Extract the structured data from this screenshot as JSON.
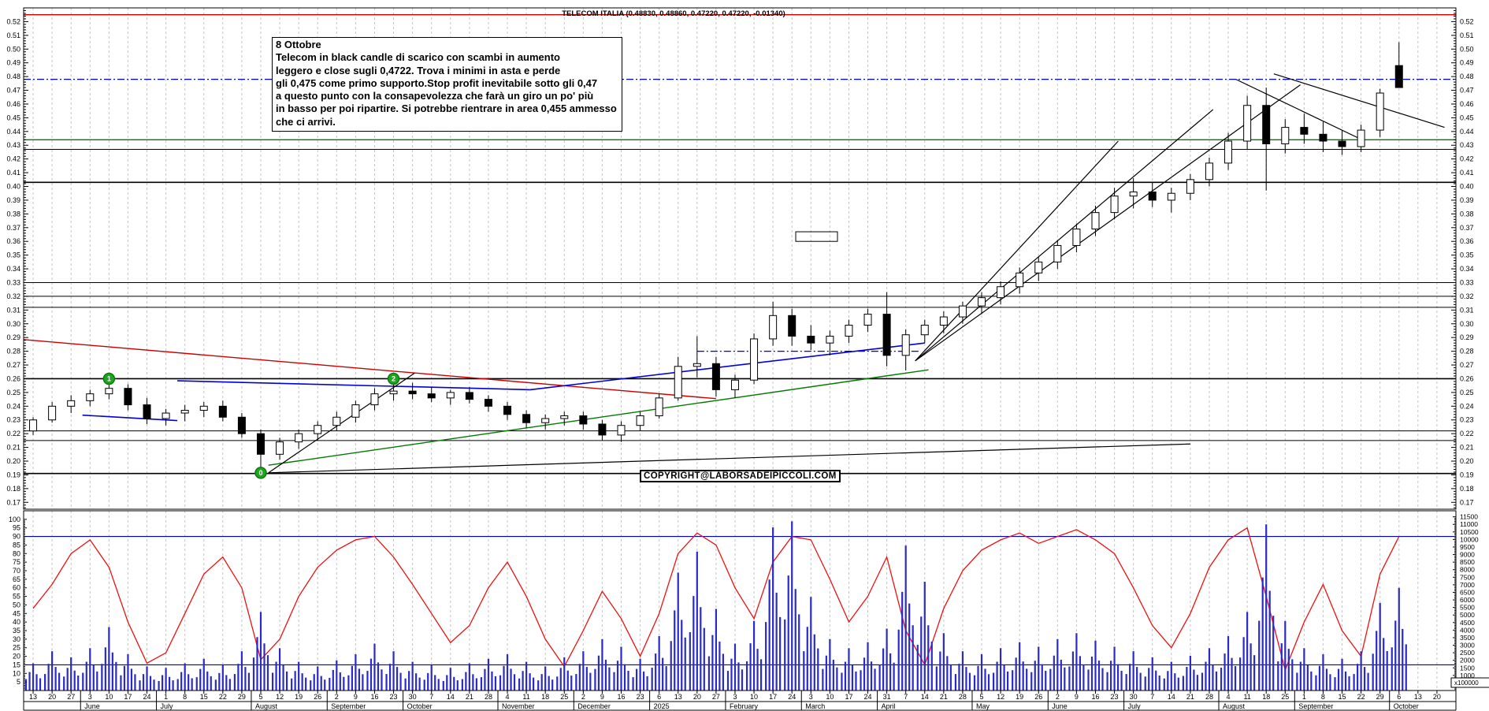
{
  "chart_title": "TELECOM ITALIA (0.48830, 0.48860, 0.47220, 0.47220,  -0.01340)",
  "copyright_label": "COPYRIGHT@LABORSADEIPICCOLI.COM",
  "volume_unit": "x100000",
  "annotation_box": {
    "line1": "8 Ottobre",
    "line2": "Telecom in black candle di scarico con scambi in aumento",
    "line3": "leggero e close sugli 0,4722. Trova i minimi in asta e perde",
    "line4": "gli 0,475 come primo supporto.Stop profit inevitabile sotto gli 0,47",
    "line5": "a questo punto con la consapevolezza che farà un giro un po' più",
    "line6": "in basso per poi ripartire. Si potrebbe rientrare in area 0,455 ammesso",
    "line7": "che ci arrivi."
  },
  "colors": {
    "up_candle": "#ffffff",
    "down_candle": "#000000",
    "volume_bar": "#2a2ac8",
    "oscillator_line": "#ee1111",
    "grid": "#c4c4c4",
    "frame": "#000000",
    "resistance_red": "#cc0000",
    "dashdot_blue": "#0000dd",
    "support_green": "#007a00",
    "osc_threshold_blue": "#0000cc",
    "marker_circle_fill": "#1fa51f",
    "marker_circle_stroke": "#0c7a0c"
  },
  "chart_data": {
    "type": "candlestick",
    "title": "TELECOM ITALIA (0.48830, 0.48860, 0.47220, 0.47220,  -0.01340)",
    "last_quote": {
      "open": 0.4883,
      "high": 0.4886,
      "low": 0.4722,
      "close": 0.4722,
      "change": -0.0134
    },
    "price_axis": {
      "min": 0.165,
      "max": 0.53,
      "tick_step": 0.01,
      "first_label": 0.52,
      "last_label": 0.17
    },
    "oscillator_axis": {
      "min": 0,
      "max": 105,
      "tick_step": 5,
      "labels_from": 5,
      "labels_to": 100
    },
    "volume_axis": {
      "min": 0,
      "max": 11900,
      "tick_step": 500,
      "labels_from": 500,
      "labels_to": 11500,
      "unit": "x100000"
    },
    "week_labels": [
      "13",
      "20",
      "27",
      "3",
      "10",
      "17",
      "24",
      "1",
      "8",
      "15",
      "22",
      "29",
      "5",
      "12",
      "19",
      "26",
      "2",
      "9",
      "16",
      "23",
      "30",
      "7",
      "14",
      "21",
      "28",
      "4",
      "11",
      "18",
      "25",
      "2",
      "9",
      "16",
      "23",
      "6",
      "13",
      "20",
      "27",
      "3",
      "10",
      "17",
      "24",
      "3",
      "10",
      "17",
      "24",
      "31",
      "7",
      "14",
      "21",
      "28",
      "5",
      "12",
      "19",
      "26",
      "2",
      "9",
      "16",
      "23",
      "30",
      "7",
      "14",
      "21",
      "28",
      "4",
      "11",
      "18",
      "25",
      "1",
      "8",
      "15",
      "22",
      "29",
      "6",
      "13",
      "20"
    ],
    "month_sections": [
      {
        "label": "",
        "start": 0
      },
      {
        "label": "June",
        "start": 3
      },
      {
        "label": "July",
        "start": 7
      },
      {
        "label": "August",
        "start": 12
      },
      {
        "label": "September",
        "start": 16
      },
      {
        "label": "October",
        "start": 20
      },
      {
        "label": "November",
        "start": 25
      },
      {
        "label": "December",
        "start": 29
      },
      {
        "label": "2025",
        "start": 33
      },
      {
        "label": "February",
        "start": 37
      },
      {
        "label": "March",
        "start": 41
      },
      {
        "label": "April",
        "start": 45
      },
      {
        "label": "May",
        "start": 50
      },
      {
        "label": "June",
        "start": 54
      },
      {
        "label": "July",
        "start": 58
      },
      {
        "label": "August",
        "start": 63
      },
      {
        "label": "September",
        "start": 67
      },
      {
        "label": "October",
        "start": 72
      }
    ],
    "candles_weekly_ohlc": [
      [
        0.222,
        0.232,
        0.219,
        0.23
      ],
      [
        0.23,
        0.243,
        0.228,
        0.24
      ],
      [
        0.24,
        0.248,
        0.235,
        0.244
      ],
      [
        0.244,
        0.252,
        0.24,
        0.249
      ],
      [
        0.249,
        0.26,
        0.245,
        0.253
      ],
      [
        0.253,
        0.256,
        0.237,
        0.241
      ],
      [
        0.241,
        0.246,
        0.227,
        0.231
      ],
      [
        0.231,
        0.238,
        0.226,
        0.235
      ],
      [
        0.235,
        0.241,
        0.229,
        0.237
      ],
      [
        0.237,
        0.243,
        0.232,
        0.24
      ],
      [
        0.24,
        0.244,
        0.229,
        0.232
      ],
      [
        0.232,
        0.235,
        0.217,
        0.22
      ],
      [
        0.22,
        0.223,
        0.192,
        0.205
      ],
      [
        0.205,
        0.217,
        0.201,
        0.214
      ],
      [
        0.214,
        0.223,
        0.209,
        0.22
      ],
      [
        0.22,
        0.229,
        0.215,
        0.226
      ],
      [
        0.226,
        0.236,
        0.222,
        0.232
      ],
      [
        0.232,
        0.244,
        0.228,
        0.241
      ],
      [
        0.241,
        0.253,
        0.237,
        0.249
      ],
      [
        0.249,
        0.26,
        0.244,
        0.251
      ],
      [
        0.251,
        0.257,
        0.245,
        0.249
      ],
      [
        0.249,
        0.254,
        0.243,
        0.246
      ],
      [
        0.246,
        0.252,
        0.241,
        0.25
      ],
      [
        0.25,
        0.254,
        0.242,
        0.245
      ],
      [
        0.245,
        0.248,
        0.236,
        0.24
      ],
      [
        0.24,
        0.243,
        0.23,
        0.234
      ],
      [
        0.234,
        0.237,
        0.224,
        0.228
      ],
      [
        0.228,
        0.234,
        0.223,
        0.231
      ],
      [
        0.231,
        0.236,
        0.226,
        0.233
      ],
      [
        0.233,
        0.236,
        0.223,
        0.227
      ],
      [
        0.227,
        0.23,
        0.215,
        0.219
      ],
      [
        0.219,
        0.229,
        0.214,
        0.226
      ],
      [
        0.226,
        0.236,
        0.222,
        0.233
      ],
      [
        0.233,
        0.249,
        0.231,
        0.246
      ],
      [
        0.246,
        0.276,
        0.244,
        0.269
      ],
      [
        0.269,
        0.291,
        0.261,
        0.271
      ],
      [
        0.271,
        0.276,
        0.247,
        0.252
      ],
      [
        0.252,
        0.263,
        0.246,
        0.259
      ],
      [
        0.259,
        0.293,
        0.256,
        0.289
      ],
      [
        0.289,
        0.316,
        0.284,
        0.306
      ],
      [
        0.306,
        0.311,
        0.284,
        0.291
      ],
      [
        0.291,
        0.299,
        0.281,
        0.286
      ],
      [
        0.286,
        0.295,
        0.277,
        0.291
      ],
      [
        0.291,
        0.303,
        0.286,
        0.299
      ],
      [
        0.299,
        0.311,
        0.294,
        0.307
      ],
      [
        0.307,
        0.323,
        0.269,
        0.277
      ],
      [
        0.277,
        0.296,
        0.266,
        0.292
      ],
      [
        0.292,
        0.303,
        0.286,
        0.299
      ],
      [
        0.299,
        0.309,
        0.293,
        0.305
      ],
      [
        0.305,
        0.316,
        0.3,
        0.313
      ],
      [
        0.313,
        0.323,
        0.307,
        0.319
      ],
      [
        0.319,
        0.331,
        0.314,
        0.327
      ],
      [
        0.327,
        0.341,
        0.322,
        0.337
      ],
      [
        0.337,
        0.349,
        0.331,
        0.345
      ],
      [
        0.345,
        0.361,
        0.34,
        0.357
      ],
      [
        0.357,
        0.373,
        0.352,
        0.369
      ],
      [
        0.369,
        0.386,
        0.364,
        0.381
      ],
      [
        0.381,
        0.399,
        0.376,
        0.393
      ],
      [
        0.393,
        0.406,
        0.384,
        0.396
      ],
      [
        0.396,
        0.403,
        0.385,
        0.39
      ],
      [
        0.39,
        0.399,
        0.381,
        0.395
      ],
      [
        0.395,
        0.409,
        0.39,
        0.405
      ],
      [
        0.405,
        0.421,
        0.4,
        0.417
      ],
      [
        0.417,
        0.439,
        0.412,
        0.433
      ],
      [
        0.433,
        0.466,
        0.427,
        0.459
      ],
      [
        0.459,
        0.472,
        0.397,
        0.431
      ],
      [
        0.431,
        0.449,
        0.424,
        0.443
      ],
      [
        0.443,
        0.453,
        0.431,
        0.438
      ],
      [
        0.438,
        0.447,
        0.425,
        0.433
      ],
      [
        0.433,
        0.441,
        0.423,
        0.429
      ],
      [
        0.429,
        0.445,
        0.425,
        0.441
      ],
      [
        0.441,
        0.471,
        0.436,
        0.468
      ],
      [
        0.488,
        0.505,
        0.472,
        0.472
      ]
    ],
    "oscillator_weekly": [
      48,
      62,
      80,
      88,
      72,
      40,
      16,
      22,
      45,
      68,
      78,
      60,
      18,
      30,
      55,
      72,
      82,
      88,
      90,
      78,
      62,
      45,
      28,
      38,
      60,
      75,
      55,
      30,
      14,
      35,
      58,
      42,
      20,
      45,
      80,
      92,
      85,
      60,
      42,
      75,
      90,
      88,
      65,
      40,
      55,
      78,
      35,
      15,
      48,
      70,
      82,
      88,
      92,
      86,
      90,
      94,
      88,
      80,
      60,
      38,
      25,
      45,
      72,
      88,
      95,
      55,
      12,
      40,
      62,
      35,
      20,
      68,
      90
    ],
    "volume_weekly": [
      1800,
      2600,
      2200,
      2800,
      4200,
      2400,
      1600,
      1500,
      1800,
      2100,
      1700,
      2600,
      5200,
      2800,
      1900,
      1600,
      2000,
      2400,
      3100,
      2600,
      1900,
      1700,
      1500,
      1800,
      2100,
      2400,
      1900,
      1600,
      2200,
      2600,
      3400,
      2900,
      2100,
      3600,
      7800,
      9200,
      5400,
      3100,
      4600,
      10800,
      11200,
      6200,
      3400,
      2800,
      3200,
      4100,
      9600,
      7200,
      3800,
      2600,
      2400,
      2800,
      3200,
      2900,
      3400,
      3800,
      3300,
      2900,
      2600,
      2200,
      1900,
      2300,
      2800,
      3600,
      5200,
      11000,
      4600,
      2800,
      2400,
      2100,
      2600,
      5800,
      6800
    ],
    "hlines": [
      {
        "v": 0.525,
        "color": "#cc0000",
        "w": 1.3
      },
      {
        "v": 0.478,
        "color": "#0000dd",
        "style": "dashdot",
        "w": 1.3
      },
      {
        "v": 0.434,
        "color": "#007a00",
        "w": 1.4
      },
      {
        "v": 0.427,
        "color": "#000000",
        "w": 1
      },
      {
        "v": 0.403,
        "color": "#000000",
        "w": 1.6
      },
      {
        "v": 0.33,
        "color": "#000000",
        "w": 1
      },
      {
        "v": 0.32,
        "color": "#000000",
        "w": 1
      },
      {
        "v": 0.312,
        "color": "#000000",
        "w": 1
      },
      {
        "v": 0.26,
        "color": "#000000",
        "w": 1.6
      },
      {
        "v": 0.222,
        "color": "#000000",
        "w": 1
      },
      {
        "v": 0.215,
        "color": "#000000",
        "w": 1
      },
      {
        "v": 0.191,
        "color": "#000000",
        "w": 1.6
      }
    ],
    "osc_hlines": [
      90,
      15
    ],
    "trendlines": [
      {
        "w1": -0.5,
        "p1": 0.2885,
        "w2": 36.0,
        "p2": 0.2455,
        "color": "#cc0000",
        "w": 1.4
      },
      {
        "w1": 2.6,
        "p1": 0.2335,
        "w2": 7.6,
        "p2": 0.2295,
        "color": "#0000dd",
        "w": 1.6
      },
      {
        "w1": 7.6,
        "p1": 0.2585,
        "w2": 26.2,
        "p2": 0.252,
        "color": "#0000dd",
        "w": 1.6
      },
      {
        "w1": 26.2,
        "p1": 0.252,
        "w2": 47.0,
        "p2": 0.286,
        "color": "#0000dd",
        "w": 1.6
      },
      {
        "w1": 35.0,
        "p1": 0.28,
        "w2": 46.8,
        "p2": 0.28,
        "color": "#0000dd",
        "w": 1.3,
        "style": "dashdot"
      },
      {
        "w1": 12.4,
        "p1": 0.197,
        "w2": 47.2,
        "p2": 0.2665,
        "color": "#007a00",
        "w": 1.4
      },
      {
        "w1": 12.4,
        "p1": 0.1915,
        "w2": 61.0,
        "p2": 0.2125,
        "color": "#000000",
        "w": 1.2
      },
      {
        "w1": 12.4,
        "p1": 0.1915,
        "w2": 20.1,
        "p2": 0.264,
        "color": "#000000",
        "w": 1.2
      },
      {
        "w1": 46.5,
        "p1": 0.273,
        "w2": 57.2,
        "p2": 0.433,
        "color": "#000000",
        "w": 1.2
      },
      {
        "w1": 46.5,
        "p1": 0.273,
        "w2": 62.2,
        "p2": 0.456,
        "color": "#000000",
        "w": 1.2
      },
      {
        "w1": 46.5,
        "p1": 0.273,
        "w2": 66.8,
        "p2": 0.474,
        "color": "#000000",
        "w": 1.2
      },
      {
        "w1": 63.4,
        "p1": 0.478,
        "w2": 70.2,
        "p2": 0.433,
        "color": "#000000",
        "w": 1.2
      },
      {
        "w1": 65.4,
        "p1": 0.482,
        "w2": 74.4,
        "p2": 0.443,
        "color": "#000000",
        "w": 1.2
      }
    ],
    "markers": {
      "circles": [
        {
          "week": 4.0,
          "price": 0.26,
          "label": "1"
        },
        {
          "week": 19.0,
          "price": 0.26,
          "label": "2"
        },
        {
          "week": 12.0,
          "price": 0.1915,
          "label": "0"
        }
      ],
      "rect": {
        "week_from": 40.2,
        "week_to": 42.4,
        "price_from": 0.36,
        "price_to": 0.367
      }
    }
  }
}
